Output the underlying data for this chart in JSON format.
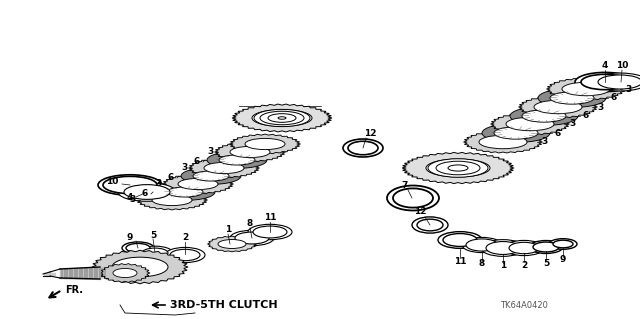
{
  "bg_color": "#ffffff",
  "line_color": "#000000",
  "part_code": "TK64A0420",
  "bottom_label": "3RD-5TH CLUTCH",
  "fr_label": "FR."
}
